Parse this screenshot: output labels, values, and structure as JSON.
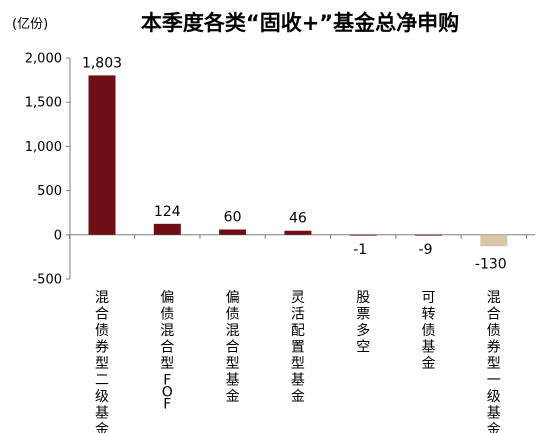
{
  "chart_data": {
    "type": "bar",
    "title": "本季度各类“固收+”基金总净申购",
    "unit_label": "(亿份)",
    "categories": [
      "混合债券型二级基金",
      "偏债混合型FOF",
      "偏债混合型基金",
      "灵活配置型基金",
      "股票多空",
      "可转债基金",
      "混合债券型一级基金"
    ],
    "values": [
      1803,
      124,
      60,
      46,
      -1,
      -9,
      -130
    ],
    "value_labels": [
      "1,803",
      "124",
      "60",
      "46",
      "-1",
      "-9",
      "-130"
    ],
    "ylim": [
      -500,
      2000
    ],
    "yticks": [
      -500,
      0,
      500,
      1000,
      1500,
      2000
    ],
    "ytick_labels": [
      "-500",
      "0",
      "500",
      "1,000",
      "1,500",
      "2,000"
    ],
    "colors": [
      "#6e0f15",
      "#6e0f15",
      "#6e0f15",
      "#6e0f15",
      "#6e0f15",
      "#6e0f15",
      "#d9c6a8"
    ],
    "grid": false,
    "legend": "none"
  }
}
